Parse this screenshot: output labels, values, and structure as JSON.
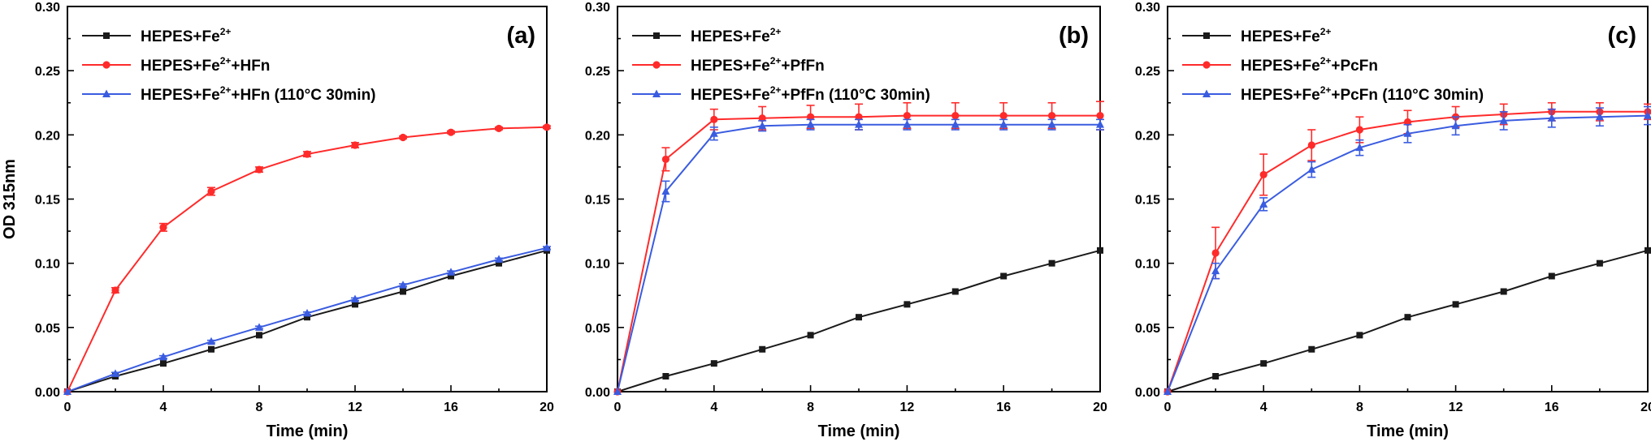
{
  "chart_data": [
    {
      "type": "line",
      "panel_label": "(a)",
      "ylabel": "OD 315nm",
      "xlabel": "Time (min)",
      "xlim": [
        0,
        20
      ],
      "ylim": [
        0,
        0.3
      ],
      "xticks": [
        0,
        4,
        8,
        12,
        16,
        20
      ],
      "yticks": [
        0.0,
        0.05,
        0.1,
        0.15,
        0.2,
        0.25,
        0.3
      ],
      "legend_position": "top-left",
      "series": [
        {
          "name": "HEPES+Fe2+",
          "legend_main": "HEPES+Fe",
          "legend_sup": "2+",
          "legend_tail": "",
          "color": "#1a1a1a",
          "marker": "square",
          "x": [
            0,
            2,
            4,
            6,
            8,
            10,
            12,
            14,
            16,
            18,
            20
          ],
          "y": [
            0,
            0.012,
            0.022,
            0.033,
            0.044,
            0.058,
            0.068,
            0.078,
            0.09,
            0.1,
            0.11
          ],
          "err": [
            0,
            0,
            0,
            0,
            0,
            0,
            0,
            0,
            0,
            0,
            0
          ]
        },
        {
          "name": "HEPES+Fe2++HFn",
          "legend_main": "HEPES+Fe",
          "legend_sup": "2+",
          "legend_tail": "+HFn",
          "color": "#ff2a2a",
          "marker": "circle",
          "x": [
            0,
            2,
            4,
            6,
            8,
            10,
            12,
            14,
            16,
            18,
            20
          ],
          "y": [
            0,
            0.079,
            0.128,
            0.156,
            0.173,
            0.185,
            0.192,
            0.198,
            0.202,
            0.205,
            0.206
          ],
          "err": [
            0,
            0.002,
            0.003,
            0.003,
            0.002,
            0.002,
            0.002,
            0.001,
            0.001,
            0.001,
            0.001
          ]
        },
        {
          "name": "HEPES+Fe2++HFn (110°C 30min)",
          "legend_main": "HEPES+Fe",
          "legend_sup": "2+",
          "legend_tail": "+HFn (110°C 30min)",
          "color": "#3a5ce0",
          "marker": "triangle",
          "x": [
            0,
            2,
            4,
            6,
            8,
            10,
            12,
            14,
            16,
            18,
            20
          ],
          "y": [
            0,
            0.014,
            0.027,
            0.039,
            0.05,
            0.061,
            0.072,
            0.083,
            0.093,
            0.103,
            0.112
          ],
          "err": [
            0,
            0.001,
            0.001,
            0.001,
            0.001,
            0.001,
            0.001,
            0.001,
            0.001,
            0.001,
            0.001
          ]
        }
      ]
    },
    {
      "type": "line",
      "panel_label": "(b)",
      "ylabel": "",
      "xlabel": "Time (min)",
      "xlim": [
        0,
        20
      ],
      "ylim": [
        0,
        0.3
      ],
      "xticks": [
        0,
        4,
        8,
        12,
        16,
        20
      ],
      "yticks": [
        0.0,
        0.05,
        0.1,
        0.15,
        0.2,
        0.25,
        0.3
      ],
      "legend_position": "top-left",
      "series": [
        {
          "name": "HEPES+Fe2+",
          "legend_main": "HEPES+Fe",
          "legend_sup": "2+",
          "legend_tail": "",
          "color": "#1a1a1a",
          "marker": "square",
          "x": [
            0,
            2,
            4,
            6,
            8,
            10,
            12,
            14,
            16,
            18,
            20
          ],
          "y": [
            0,
            0.012,
            0.022,
            0.033,
            0.044,
            0.058,
            0.068,
            0.078,
            0.09,
            0.1,
            0.11
          ],
          "err": [
            0,
            0,
            0,
            0,
            0,
            0,
            0,
            0,
            0,
            0,
            0
          ]
        },
        {
          "name": "HEPES+Fe2++PfFn",
          "legend_main": "HEPES+Fe",
          "legend_sup": "2+",
          "legend_tail": "+PfFn",
          "color": "#ff2a2a",
          "marker": "circle",
          "x": [
            0,
            2,
            4,
            6,
            8,
            10,
            12,
            14,
            16,
            18,
            20
          ],
          "y": [
            0,
            0.181,
            0.212,
            0.213,
            0.214,
            0.214,
            0.215,
            0.215,
            0.215,
            0.215,
            0.215
          ],
          "err": [
            0,
            0.009,
            0.008,
            0.009,
            0.009,
            0.01,
            0.01,
            0.01,
            0.01,
            0.01,
            0.011
          ]
        },
        {
          "name": "HEPES+Fe2++PfFn (110°C 30min)",
          "legend_main": "HEPES+Fe",
          "legend_sup": "2+",
          "legend_tail": "+PfFn (110°C 30min)",
          "color": "#3a5ce0",
          "marker": "triangle",
          "x": [
            0,
            2,
            4,
            6,
            8,
            10,
            12,
            14,
            16,
            18,
            20
          ],
          "y": [
            0,
            0.156,
            0.201,
            0.207,
            0.208,
            0.208,
            0.208,
            0.208,
            0.208,
            0.208,
            0.208
          ],
          "err": [
            0,
            0.008,
            0.005,
            0.004,
            0.004,
            0.004,
            0.004,
            0.004,
            0.004,
            0.004,
            0.004
          ]
        }
      ]
    },
    {
      "type": "line",
      "panel_label": "(c)",
      "ylabel": "",
      "xlabel": "Time (min)",
      "xlim": [
        0,
        20
      ],
      "ylim": [
        0,
        0.3
      ],
      "xticks": [
        0,
        4,
        8,
        12,
        16,
        20
      ],
      "yticks": [
        0.0,
        0.05,
        0.1,
        0.15,
        0.2,
        0.25,
        0.3
      ],
      "legend_position": "top-left",
      "series": [
        {
          "name": "HEPES+Fe2+",
          "legend_main": "HEPES+Fe",
          "legend_sup": "2+",
          "legend_tail": "",
          "color": "#1a1a1a",
          "marker": "square",
          "x": [
            0,
            2,
            4,
            6,
            8,
            10,
            12,
            14,
            16,
            18,
            20
          ],
          "y": [
            0,
            0.012,
            0.022,
            0.033,
            0.044,
            0.058,
            0.068,
            0.078,
            0.09,
            0.1,
            0.11
          ],
          "err": [
            0,
            0,
            0,
            0,
            0,
            0,
            0,
            0,
            0,
            0,
            0
          ]
        },
        {
          "name": "HEPES+Fe2++PcFn",
          "legend_main": "HEPES+Fe",
          "legend_sup": "2+",
          "legend_tail": "+PcFn",
          "color": "#ff2a2a",
          "marker": "circle",
          "x": [
            0,
            2,
            4,
            6,
            8,
            10,
            12,
            14,
            16,
            18,
            20
          ],
          "y": [
            0,
            0.108,
            0.169,
            0.192,
            0.204,
            0.21,
            0.214,
            0.216,
            0.218,
            0.218,
            0.218
          ],
          "err": [
            0,
            0.02,
            0.016,
            0.012,
            0.01,
            0.009,
            0.008,
            0.008,
            0.007,
            0.007,
            0.006
          ]
        },
        {
          "name": "HEPES+Fe2++PcFn (110°C 30min)",
          "legend_main": "HEPES+Fe",
          "legend_sup": "2+",
          "legend_tail": "+PcFn (110°C 30min)",
          "color": "#3a5ce0",
          "marker": "triangle",
          "x": [
            0,
            2,
            4,
            6,
            8,
            10,
            12,
            14,
            16,
            18,
            20
          ],
          "y": [
            0,
            0.094,
            0.146,
            0.173,
            0.19,
            0.201,
            0.207,
            0.211,
            0.213,
            0.214,
            0.215
          ],
          "err": [
            0,
            0.006,
            0.005,
            0.006,
            0.006,
            0.007,
            0.007,
            0.007,
            0.007,
            0.007,
            0.007
          ]
        }
      ]
    }
  ]
}
